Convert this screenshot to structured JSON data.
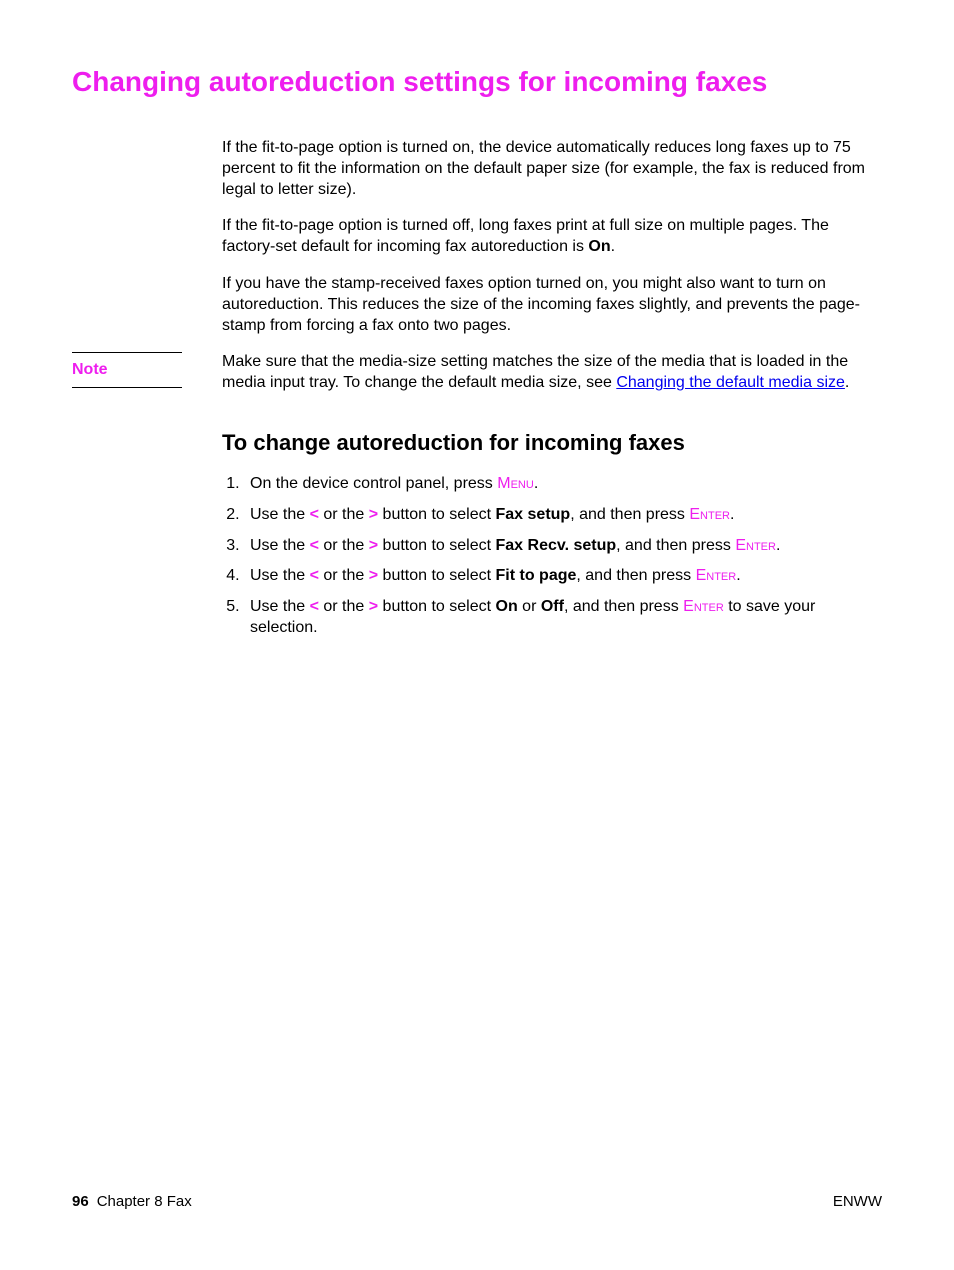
{
  "colors": {
    "accent": "#ee1eee",
    "link": "#0000ee",
    "text": "#000000",
    "bg": "#ffffff"
  },
  "typography": {
    "main_title_pt": 28,
    "sub_title_pt": 22,
    "body_pt": 16,
    "footer_pt": 15,
    "family": "Arial"
  },
  "title": "Changing autoreduction settings for incoming faxes",
  "paragraphs": {
    "p1": "If the fit-to-page option is turned on, the device automatically reduces long faxes up to 75 percent to fit the information on the default paper size (for example, the fax is reduced from legal to letter size).",
    "p2_a": "If the fit-to-page option is turned off, long faxes print at full size on multiple pages. The factory-set default for incoming fax autoreduction is ",
    "p2_bold": "On",
    "p2_b": ".",
    "p3": "If you have the stamp-received faxes option turned on, you might also want to turn on autoreduction. This reduces the size of the incoming faxes slightly, and prevents the page-stamp from forcing a fax onto two pages."
  },
  "note": {
    "label": "Note",
    "text_a": "Make sure that the media-size setting matches the size of the media that is loaded in the media input tray. To change the default media size, see ",
    "link": "Changing the default media size",
    "text_b": "."
  },
  "sub_title": "To change autoreduction for incoming faxes",
  "steps": {
    "s1_a": "On the device control panel, press ",
    "s1_menu": "Menu",
    "s1_b": ".",
    "nav_a": "Use the ",
    "lt": "<",
    "or": " or the ",
    "gt": ">",
    "nav_b": " button to select ",
    "enter_label": "Enter",
    "then_press": ", and then press ",
    "s2_sel": "Fax setup",
    "s3_sel": "Fax Recv. setup",
    "s4_sel": "Fit to page",
    "s5_on": "On",
    "s5_or": " or ",
    "s5_off": "Off",
    "s5_tail": " to save your selection.",
    "period": "."
  },
  "footer": {
    "page_num": "96",
    "chapter": "Chapter 8  Fax",
    "right": "ENWW"
  }
}
